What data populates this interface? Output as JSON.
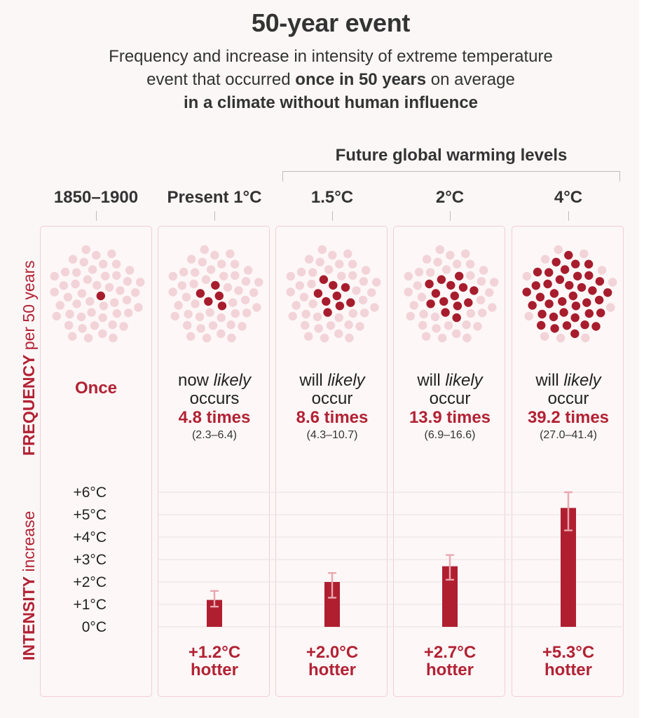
{
  "title": "50-year event",
  "subtitle": {
    "line1": "Frequency and increase in intensity of extreme temperature",
    "line2_pre": "event that occurred ",
    "line2_bold": "once in 50 years",
    "line2_post": " on average",
    "line3_bold": "in a climate without human influence"
  },
  "future_label": "Future global warming levels",
  "frequency_axis": {
    "bold": "FREQUENCY",
    "rest": " per 50 years"
  },
  "intensity_axis": {
    "bold": "INTENSITY",
    "rest": " increase"
  },
  "colors": {
    "accent": "#b22234",
    "dot_light": "#f2d3d8",
    "dot_dark": "#a71d2d",
    "bar": "#b01f30",
    "error": "#e8a8b0"
  },
  "columns": [
    {
      "label": "1850–1900",
      "once": "Once",
      "phrase_pre": "",
      "phrase_italic": "",
      "phrase_post": "",
      "phrase_line2": "",
      "times": "",
      "range": "",
      "dots_dark": 1,
      "hotter_value": "",
      "hotter_word": ""
    },
    {
      "label": "Present 1°C",
      "once": "",
      "phrase_pre": "now ",
      "phrase_italic": "likely",
      "phrase_post": "",
      "phrase_line2": "occurs",
      "times": "4.8 times",
      "range": "(2.3–6.4)",
      "dots_dark": 4.8,
      "hotter_value": "+1.2°C",
      "hotter_word": "hotter"
    },
    {
      "label": "1.5°C",
      "once": "",
      "phrase_pre": "will ",
      "phrase_italic": "likely",
      "phrase_post": "",
      "phrase_line2": "occur",
      "times": "8.6 times",
      "range": "(4.3–10.7)",
      "dots_dark": 8.6,
      "hotter_value": "+2.0°C",
      "hotter_word": "hotter"
    },
    {
      "label": "2°C",
      "once": "",
      "phrase_pre": "will ",
      "phrase_italic": "likely",
      "phrase_post": "",
      "phrase_line2": "occur",
      "times": "13.9 times",
      "range": "(6.9–16.6)",
      "dots_dark": 13.9,
      "hotter_value": "+2.7°C",
      "hotter_word": "hotter"
    },
    {
      "label": "4°C",
      "once": "",
      "phrase_pre": "will ",
      "phrase_italic": "likely",
      "phrase_post": "",
      "phrase_line2": "occur",
      "times": "39.2 times",
      "range": "(27.0–41.4)",
      "dots_dark": 39.2,
      "hotter_value": "+5.3°C",
      "hotter_word": "hotter"
    }
  ],
  "chart_data": {
    "type": "bar",
    "categories": [
      "1850–1900",
      "Present 1°C",
      "1.5°C",
      "2°C",
      "4°C"
    ],
    "series": [
      {
        "values": [
          0,
          1.2,
          2.0,
          2.7,
          5.3
        ],
        "error_low": [
          0,
          0.9,
          1.3,
          2.1,
          4.3
        ],
        "error_high": [
          0,
          1.6,
          2.4,
          3.2,
          6.0
        ]
      }
    ],
    "frequency": {
      "values": [
        1,
        4.8,
        8.6,
        13.9,
        39.2
      ],
      "range_low": [
        1,
        2.3,
        4.3,
        6.9,
        27.0
      ],
      "range_high": [
        1,
        6.4,
        10.7,
        16.6,
        41.4
      ],
      "total": 50
    },
    "yticks": [
      "+6°C",
      "+5°C",
      "+4°C",
      "+3°C",
      "+2°C",
      "+1°C",
      "0°C"
    ],
    "ylim": [
      0,
      6
    ],
    "grid": true
  }
}
